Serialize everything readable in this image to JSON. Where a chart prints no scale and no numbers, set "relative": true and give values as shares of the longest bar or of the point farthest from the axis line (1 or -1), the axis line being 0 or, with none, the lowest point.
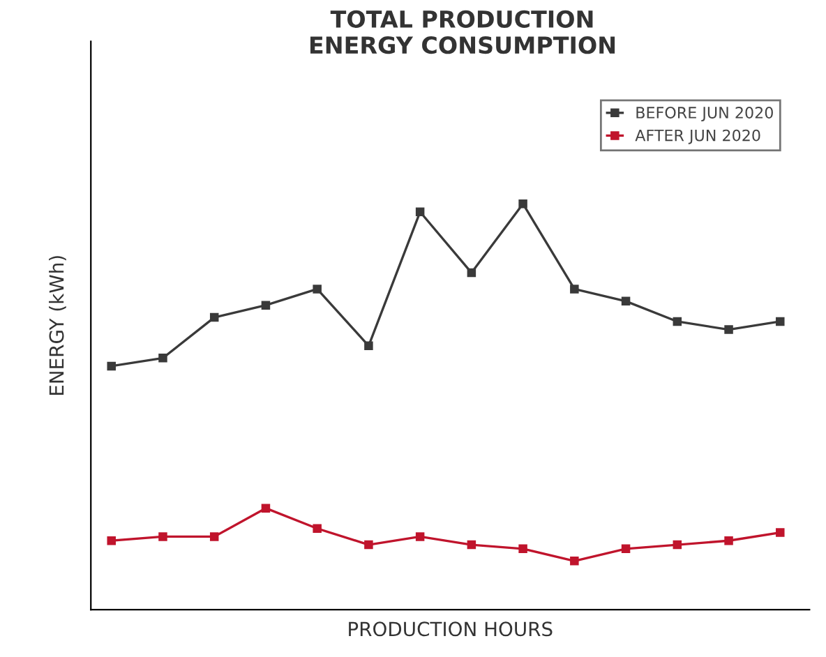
{
  "chart_data": {
    "type": "line",
    "title": "TOTAL PRODUCTION\nENERGY CONSUMPTION",
    "xlabel": "PRODUCTION HOURS",
    "ylabel": "ENERGY (kWh)",
    "relative": true,
    "categories": [
      null,
      null,
      null,
      null,
      null,
      null,
      null,
      null,
      null,
      null,
      null,
      null,
      null,
      null
    ],
    "series": [
      {
        "name": "BEFORE JUN 2020",
        "color": "#3a3a3a",
        "values": [
          0.6,
          0.62,
          0.72,
          0.75,
          0.79,
          0.65,
          0.98,
          0.83,
          1.0,
          0.79,
          0.76,
          0.71,
          0.69,
          0.71
        ]
      },
      {
        "name": "AFTER JUN 2020",
        "color": "#c0142c",
        "values": [
          0.17,
          0.18,
          0.18,
          0.25,
          0.2,
          0.16,
          0.18,
          0.16,
          0.15,
          0.12,
          0.15,
          0.16,
          0.17,
          0.19
        ]
      }
    ],
    "marker": "square",
    "line_style": "solid",
    "legend": "top right"
  }
}
